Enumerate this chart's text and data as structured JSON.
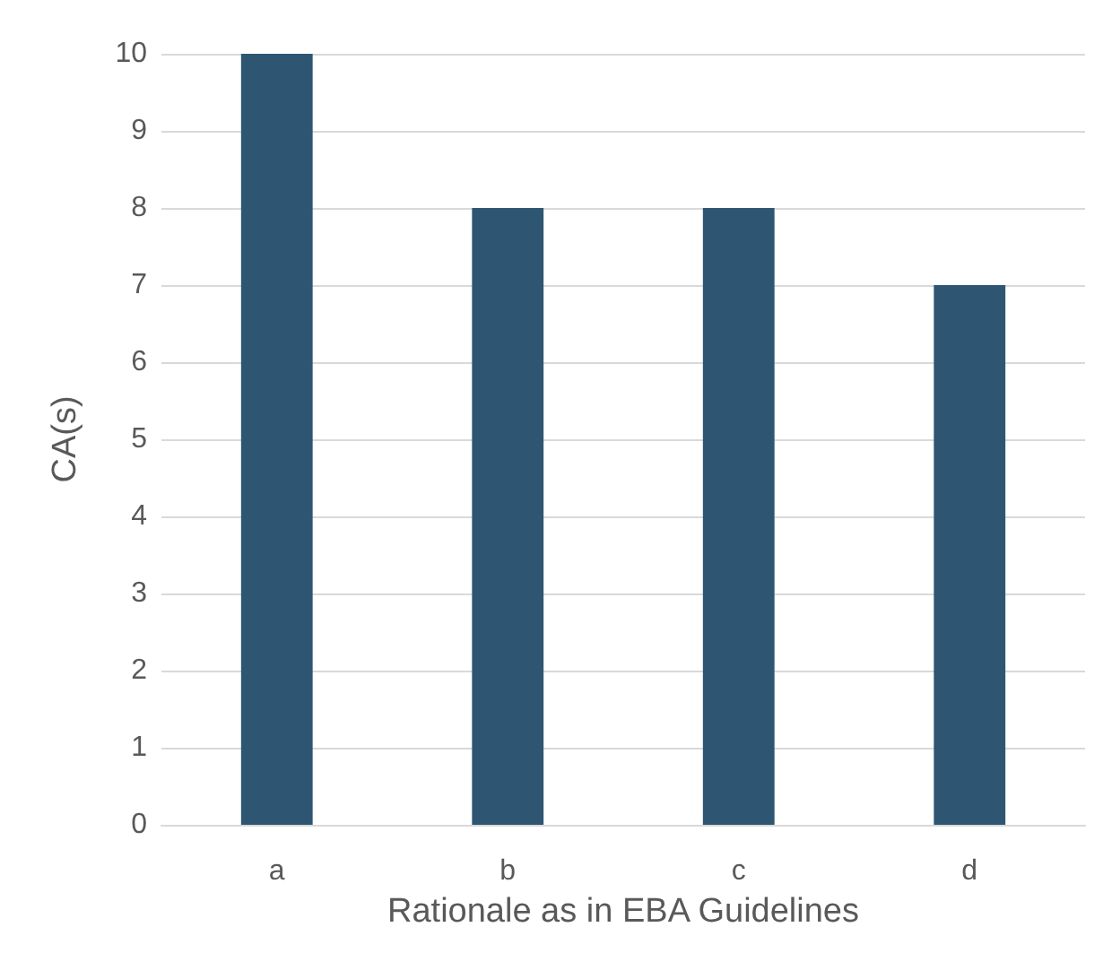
{
  "chart_data": {
    "type": "bar",
    "xlabel": "Rationale as in EBA Guidelines",
    "ylabel": "CA(s)",
    "categories": [
      "a",
      "b",
      "c",
      "d"
    ],
    "values": [
      10,
      8,
      8,
      7
    ],
    "color": "#2e5673",
    "ylim": [
      0,
      10
    ],
    "yticks": [
      0,
      1,
      2,
      3,
      4,
      5,
      6,
      7,
      8,
      9,
      10
    ],
    "grid": "y"
  }
}
